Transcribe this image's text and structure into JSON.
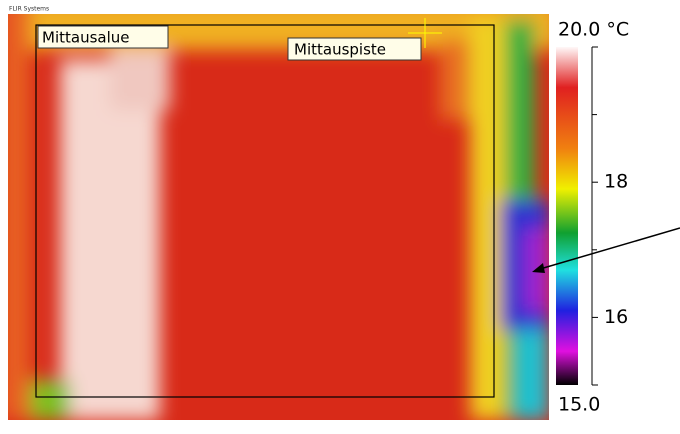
{
  "image": {
    "brand": "FLIR Systems",
    "area_label": "Mittausalue",
    "spot_label": "Mittauspiste"
  },
  "scale": {
    "lim": [
      15,
      20
    ],
    "ticks": [
      {
        "value": 20,
        "label": "20.0 °C"
      },
      18,
      16,
      {
        "value": 15,
        "label": "15.0"
      }
    ],
    "minor_ticks": [
      19,
      17
    ]
  }
}
